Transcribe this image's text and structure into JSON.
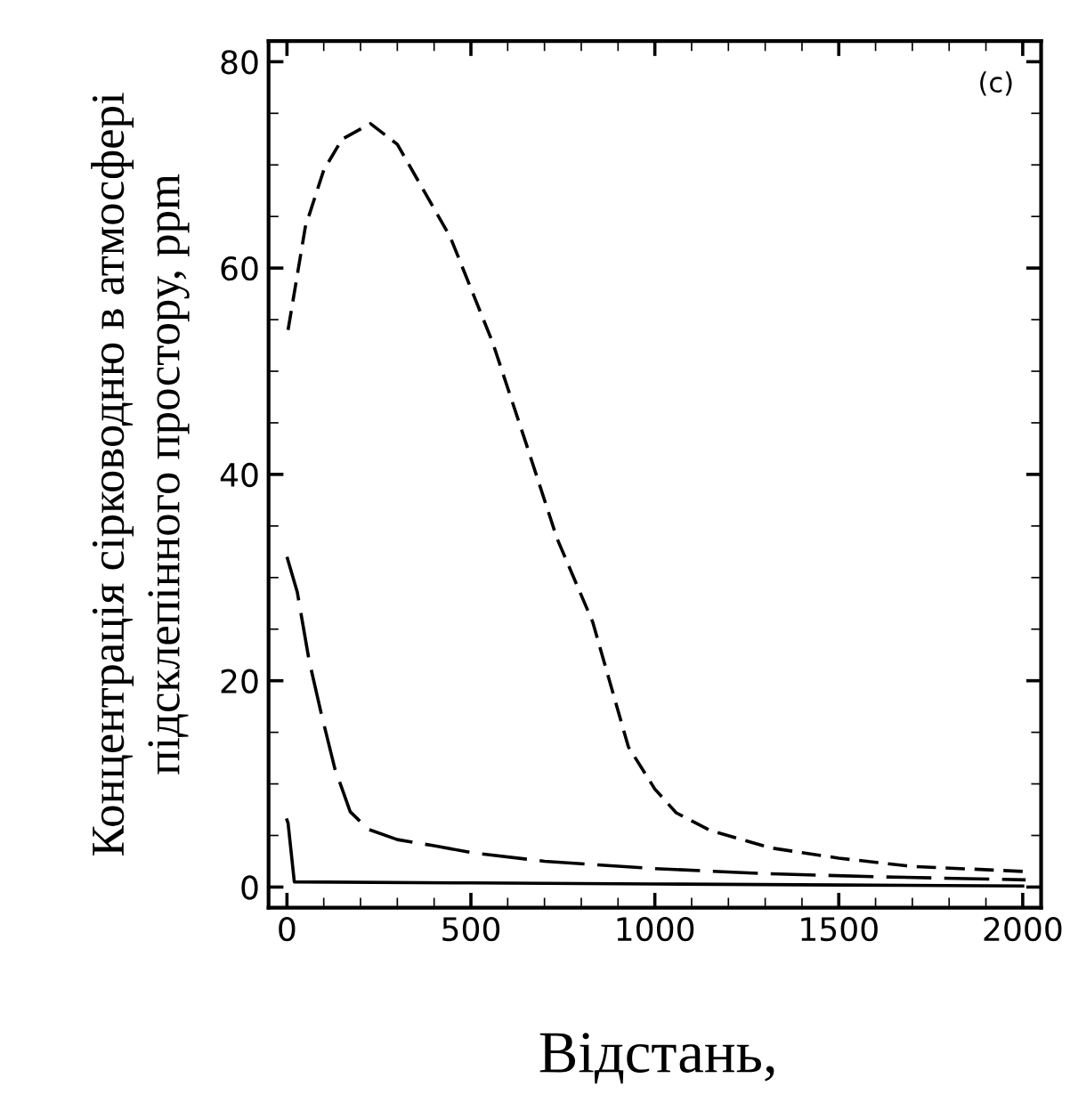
{
  "chart_data": {
    "type": "line",
    "xlabel": "Відстань,",
    "ylabel": "Концентрація сірководню в атмосфері\nпідсклепінного простору, ppm",
    "annotations": [
      "(c)"
    ],
    "xlim": [
      -50,
      2050
    ],
    "ylim": [
      -2,
      82
    ],
    "xticks": [
      0,
      500,
      1000,
      1500,
      2000
    ],
    "yticks": [
      0,
      20,
      40,
      60,
      80
    ],
    "grid": false,
    "marker": "none",
    "series": [
      {
        "color": "#000000",
        "line_style": "dashed",
        "x": [
          3,
          50,
          100,
          150,
          227,
          300,
          444,
          559,
          650,
          734,
          831,
          928,
          1000,
          1058,
          1150,
          1314,
          1500,
          1700,
          2010
        ],
        "values": [
          54,
          64,
          69.5,
          72.5,
          74,
          72,
          63,
          52.8,
          43,
          33.8,
          25.7,
          13.6,
          9.5,
          7.2,
          5.5,
          3.8,
          2.8,
          2,
          1.5
        ]
      },
      {
        "color": "#000000",
        "line_style": "longdash",
        "x": [
          0,
          28,
          60,
          92,
          130,
          172,
          221,
          300,
          400,
          510,
          700,
          994,
          1300,
          1600,
          2008
        ],
        "values": [
          32,
          28.6,
          22,
          17,
          11.5,
          7.3,
          5.6,
          4.6,
          4,
          3.3,
          2.5,
          1.8,
          1.3,
          1,
          0.7
        ]
      },
      {
        "color": "#000000",
        "line_style": "solid",
        "x": [
          0,
          3,
          20,
          500,
          1000,
          1500,
          2000
        ],
        "values": [
          6.5,
          6.2,
          0.5,
          0.4,
          0.3,
          0.2,
          0.1
        ]
      }
    ]
  }
}
